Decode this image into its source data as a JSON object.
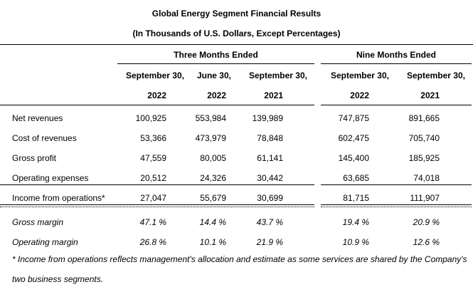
{
  "title": "Global Energy Segment Financial Results",
  "subtitle": "(In Thousands of U.S. Dollars, Except Percentages)",
  "groups": {
    "three_months": "Three Months Ended",
    "nine_months": "Nine Months Ended"
  },
  "columns": [
    {
      "line1": "September 30,",
      "line2": "2022"
    },
    {
      "line1": "June 30,",
      "line2": "2022"
    },
    {
      "line1": "September 30,",
      "line2": "2021"
    },
    {
      "line1": "September 30,",
      "line2": "2022"
    },
    {
      "line1": "September 30,",
      "line2": "2021"
    }
  ],
  "rows": [
    {
      "label": "Net revenues",
      "values": [
        "100,925",
        "553,984",
        "139,989",
        "747,875",
        "891,665"
      ]
    },
    {
      "label": "Cost of revenues",
      "values": [
        "53,366",
        "473,979",
        "78,848",
        "602,475",
        "705,740"
      ]
    },
    {
      "label": "Gross profit",
      "values": [
        "47,559",
        "80,005",
        "61,141",
        "145,400",
        "185,925"
      ]
    },
    {
      "label": "Operating expenses",
      "values": [
        "20,512",
        "24,326",
        "30,442",
        "63,685",
        "74,018"
      ]
    },
    {
      "label": "Income from operations*",
      "values": [
        "27,047",
        "55,679",
        "30,699",
        "81,715",
        "111,907"
      ]
    },
    {
      "label": "Gross margin",
      "values": [
        "47.1 %",
        "14.4 %",
        "43.7 %",
        "19.4 %",
        "20.9 %"
      ]
    },
    {
      "label": "Operating margin",
      "values": [
        "26.8 %",
        "10.1 %",
        "21.9 %",
        "10.9 %",
        "12.6 %"
      ]
    }
  ],
  "footnote": {
    "line1": "* Income from operations reflects management's allocation and estimate as some services are shared by the Company's",
    "line2": "two business segments."
  }
}
